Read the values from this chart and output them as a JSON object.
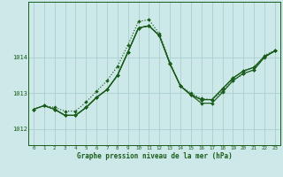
{
  "title": "Graphe pression niveau de la mer (hPa)",
  "bg_color": "#cce8e8",
  "grid_color": "#aacfcf",
  "line_color": "#1a5c1a",
  "xlim": [
    -0.5,
    23.5
  ],
  "ylim": [
    1011.55,
    1015.55
  ],
  "xticks": [
    0,
    1,
    2,
    3,
    4,
    5,
    6,
    7,
    8,
    9,
    10,
    11,
    12,
    13,
    14,
    15,
    16,
    17,
    18,
    19,
    20,
    21,
    22,
    23
  ],
  "yticks": [
    1012,
    1013,
    1014
  ],
  "line_dotted": {
    "x": [
      0,
      1,
      2,
      3,
      4,
      5,
      6,
      7,
      8,
      9,
      10,
      11,
      12,
      13,
      14,
      15,
      16,
      17,
      18,
      19,
      20,
      21,
      22,
      23
    ],
    "y": [
      1012.55,
      1012.65,
      1012.6,
      1012.5,
      1012.5,
      1012.75,
      1013.05,
      1013.35,
      1013.75,
      1014.35,
      1015.0,
      1015.05,
      1014.65,
      1013.85,
      1013.2,
      1013.0,
      1012.85,
      1012.82,
      1013.05,
      1013.35,
      1013.55,
      1013.65,
      1014.05,
      1014.2
    ]
  },
  "line_a": {
    "x": [
      0,
      1,
      2,
      3,
      4,
      5,
      6,
      7,
      8,
      9,
      10,
      11,
      12,
      13,
      14,
      15,
      16,
      17,
      18,
      19,
      20,
      21,
      22,
      23
    ],
    "y": [
      1012.55,
      1012.65,
      1012.55,
      1012.38,
      1012.38,
      1012.6,
      1012.88,
      1013.1,
      1013.5,
      1014.15,
      1014.82,
      1014.88,
      1014.6,
      1013.82,
      1013.2,
      1012.95,
      1012.82,
      1012.82,
      1013.12,
      1013.42,
      1013.62,
      1013.72,
      1014.02,
      1014.18
    ]
  },
  "line_b": {
    "x": [
      2,
      3,
      4,
      5,
      6,
      7,
      8,
      9,
      10,
      11,
      12,
      13,
      14,
      15,
      16,
      17,
      18,
      19,
      20,
      21,
      22,
      23
    ],
    "y": [
      1012.55,
      1012.38,
      1012.38,
      1012.6,
      1012.88,
      1013.1,
      1013.5,
      1014.15,
      1014.82,
      1014.88,
      1014.6,
      1013.82,
      1013.2,
      1012.95,
      1012.82,
      1012.82,
      1013.12,
      1013.42,
      1013.62,
      1013.72,
      1014.02,
      1014.18
    ]
  },
  "line_c": {
    "x": [
      0,
      1,
      2,
      3,
      4,
      5,
      6,
      7,
      8,
      9,
      10,
      11,
      12,
      13,
      14,
      15,
      16,
      17,
      18,
      19,
      20,
      21,
      22,
      23
    ],
    "y": [
      1012.55,
      1012.65,
      1012.55,
      1012.38,
      1012.38,
      1012.6,
      1012.88,
      1013.1,
      1013.5,
      1014.15,
      1014.82,
      1014.88,
      1014.6,
      1013.82,
      1013.2,
      1012.95,
      1012.72,
      1012.72,
      1013.02,
      1013.35,
      1013.55,
      1013.65,
      1014.0,
      1014.18
    ]
  }
}
